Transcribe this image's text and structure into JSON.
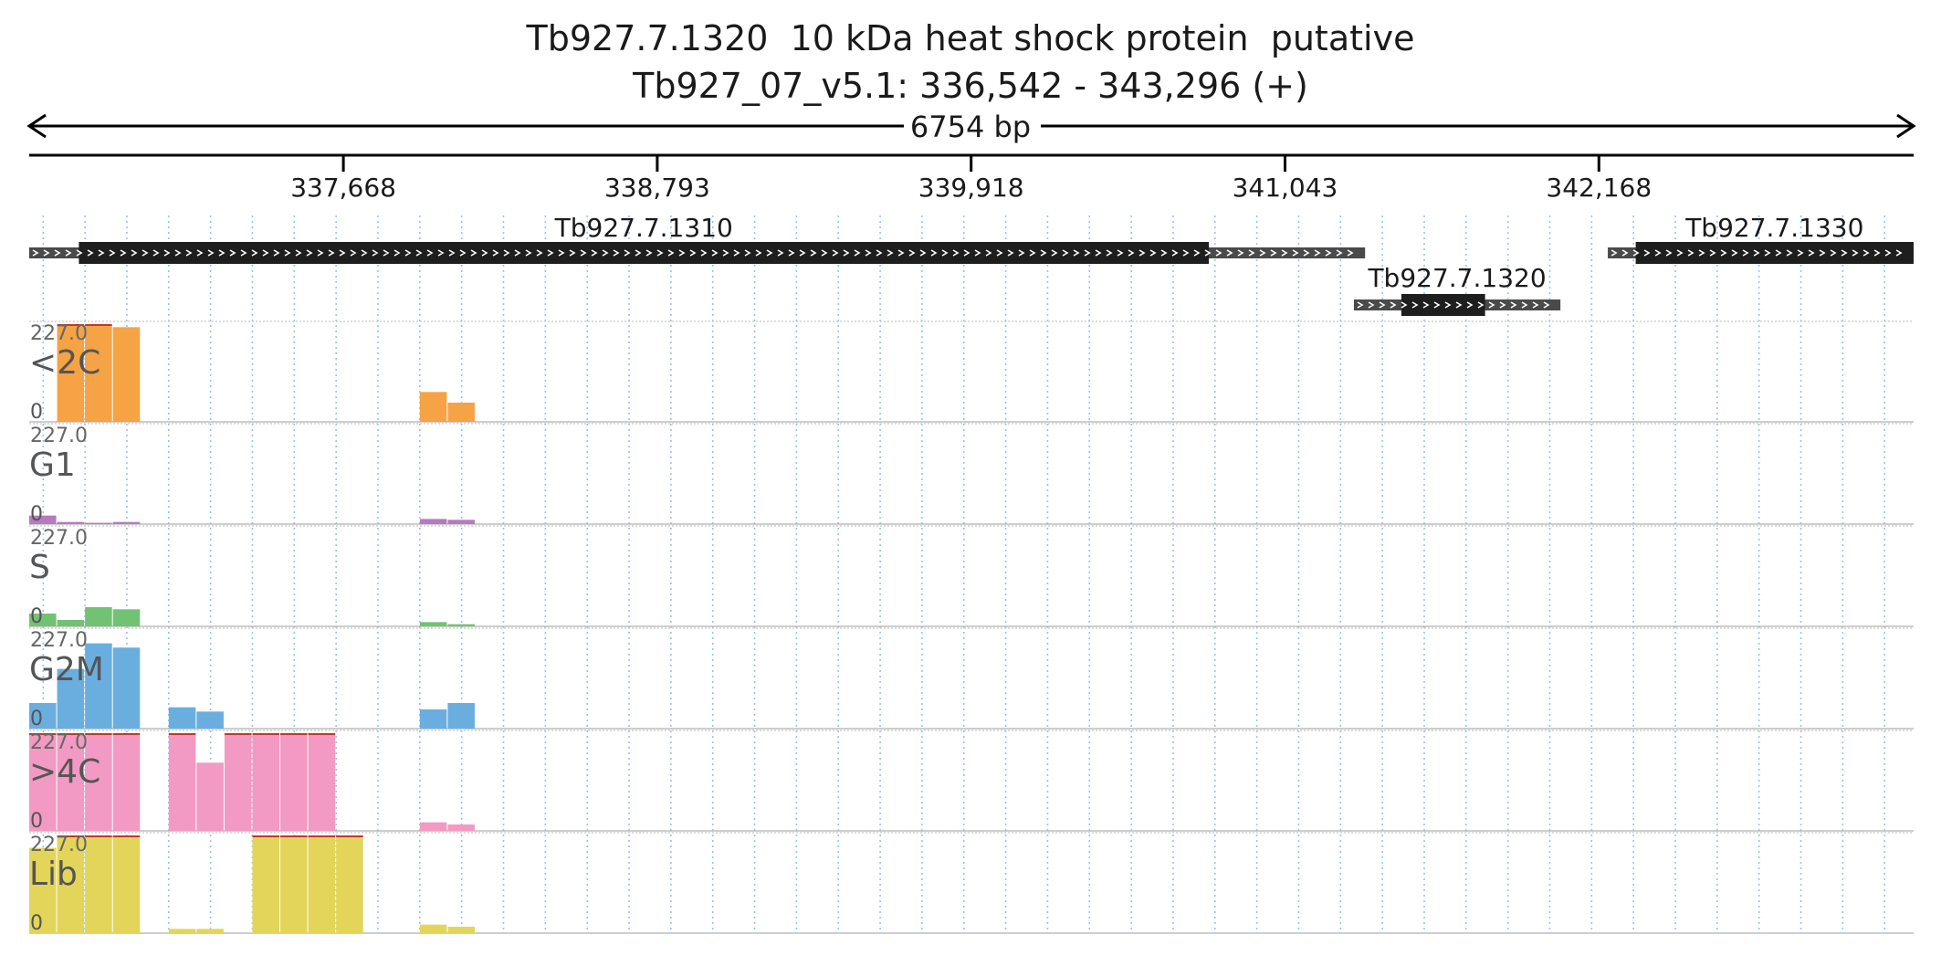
{
  "chart_data": {
    "type": "area",
    "title": "Tb927.7.1320  10 kDa heat shock protein  putative",
    "subtitle": "Tb927_07_v5.1: 336,542 - 343,296 (+)",
    "span_label": "6754 bp",
    "x_range": [
      336542,
      343296
    ],
    "x_ticks": [
      {
        "value": 337668,
        "label": "337,668"
      },
      {
        "value": 338793,
        "label": "338,793"
      },
      {
        "value": 339918,
        "label": "339,918"
      },
      {
        "value": 341043,
        "label": "341,043"
      },
      {
        "value": 342168,
        "label": "342,168"
      }
    ],
    "grid": true,
    "genes": [
      {
        "name": "Tb927.7.1310",
        "utr_start": 336542,
        "cds_start": 336720,
        "cds_end": 340770,
        "utr_end": 341330,
        "row": 0
      },
      {
        "name": "Tb927.7.1320",
        "utr_start": 341290,
        "cds_start": 341460,
        "cds_end": 341760,
        "utr_end": 342030,
        "row": 1
      },
      {
        "name": "Tb927.7.1330",
        "utr_start": 342200,
        "cds_start": 342300,
        "cds_end": 343296,
        "utr_end": 343296,
        "row": 0
      }
    ],
    "ylim": [
      0,
      227.0
    ],
    "ymax_label": "227.0",
    "ymin_label": "0",
    "bin_x": [
      336542,
      336642,
      336742,
      336842,
      336942,
      337042,
      337142,
      337242,
      337342,
      337442,
      337542,
      337642,
      337742,
      337842,
      337942,
      338042,
      338142,
      338242,
      338342,
      338442,
      338542,
      338642,
      338742,
      338842,
      338942,
      339042,
      339142,
      339242,
      339342,
      339442,
      339542,
      339642,
      339742,
      339842,
      339942,
      340042,
      340142,
      340242,
      340342,
      340442,
      340542,
      340642,
      340742,
      340842,
      340942,
      341042,
      341142,
      341242,
      341342,
      341442,
      341542,
      341642,
      341742,
      341842,
      341942,
      342042,
      342142,
      342242,
      342342,
      342442,
      342542,
      342642,
      342742,
      342842,
      342942,
      343042,
      343142,
      343242
    ],
    "series": [
      {
        "name": "<2C",
        "color": "#f5a345",
        "values": [
          0,
          227,
          227,
          222,
          0,
          0,
          0,
          0,
          0,
          0,
          0,
          0,
          0,
          0,
          70,
          45,
          0,
          0,
          0,
          0,
          0,
          0,
          0,
          0,
          0,
          0,
          0,
          0,
          0,
          0,
          0,
          0,
          0,
          0,
          0,
          0,
          0,
          0,
          0,
          0,
          0,
          0,
          0,
          0,
          0,
          0,
          0,
          0,
          0,
          0,
          0,
          0,
          0,
          0,
          0,
          0,
          0,
          0,
          0,
          0,
          0,
          0,
          0,
          0,
          0,
          0,
          0,
          0
        ]
      },
      {
        "name": "G1",
        "color": "#b57bbf",
        "values": [
          20,
          5,
          3,
          5,
          0,
          0,
          0,
          0,
          0,
          0,
          0,
          0,
          0,
          0,
          12,
          10,
          0,
          0,
          0,
          0,
          0,
          0,
          0,
          0,
          0,
          0,
          0,
          0,
          0,
          0,
          0,
          0,
          0,
          0,
          0,
          0,
          0,
          0,
          0,
          0,
          0,
          0,
          0,
          0,
          0,
          0,
          0,
          0,
          0,
          0,
          0,
          0,
          0,
          0,
          0,
          0,
          0,
          0,
          0,
          0,
          0,
          0,
          0,
          0,
          0,
          0,
          0,
          0
        ]
      },
      {
        "name": "S",
        "color": "#72c274",
        "values": [
          30,
          15,
          45,
          40,
          0,
          0,
          0,
          0,
          0,
          0,
          0,
          0,
          0,
          0,
          10,
          5,
          0,
          0,
          0,
          0,
          0,
          0,
          0,
          0,
          0,
          0,
          0,
          0,
          0,
          0,
          0,
          0,
          0,
          0,
          0,
          0,
          0,
          0,
          0,
          0,
          0,
          0,
          0,
          0,
          0,
          0,
          0,
          0,
          0,
          0,
          0,
          0,
          0,
          0,
          0,
          0,
          0,
          0,
          0,
          0,
          0,
          0,
          0,
          0,
          0,
          0,
          0,
          0
        ]
      },
      {
        "name": "G2M",
        "color": "#6aaee0",
        "values": [
          60,
          140,
          200,
          190,
          0,
          50,
          40,
          0,
          0,
          0,
          0,
          0,
          0,
          0,
          45,
          60,
          0,
          0,
          0,
          0,
          0,
          0,
          0,
          0,
          0,
          0,
          0,
          0,
          0,
          0,
          0,
          0,
          0,
          0,
          0,
          0,
          0,
          0,
          0,
          0,
          0,
          0,
          0,
          0,
          0,
          0,
          0,
          0,
          0,
          0,
          0,
          0,
          0,
          0,
          0,
          0,
          0,
          0,
          0,
          0,
          0,
          0,
          0,
          0,
          0,
          0,
          0,
          0
        ]
      },
      {
        "name": ">4C",
        "color": "#f29ac3",
        "values": [
          227,
          227,
          227,
          227,
          0,
          227,
          160,
          227,
          227,
          227,
          227,
          0,
          0,
          0,
          20,
          15,
          0,
          0,
          0,
          0,
          0,
          0,
          0,
          0,
          0,
          0,
          0,
          0,
          0,
          0,
          0,
          0,
          0,
          0,
          0,
          0,
          0,
          0,
          0,
          0,
          0,
          0,
          0,
          0,
          0,
          0,
          0,
          0,
          0,
          0,
          0,
          0,
          0,
          0,
          0,
          0,
          0,
          0,
          0,
          0,
          0,
          0,
          0,
          0,
          0,
          0,
          0,
          0
        ]
      },
      {
        "name": "Lib",
        "color": "#e3d55a",
        "values": [
          200,
          227,
          227,
          227,
          0,
          10,
          10,
          0,
          227,
          227,
          227,
          227,
          0,
          0,
          20,
          15,
          0,
          0,
          0,
          0,
          0,
          0,
          0,
          0,
          0,
          0,
          0,
          0,
          0,
          0,
          0,
          0,
          0,
          0,
          0,
          0,
          0,
          0,
          0,
          0,
          0,
          0,
          0,
          0,
          0,
          0,
          0,
          0,
          0,
          0,
          0,
          0,
          0,
          0,
          0,
          0,
          0,
          0,
          0,
          0,
          0,
          0,
          0,
          0,
          0,
          0,
          0,
          0
        ]
      }
    ]
  }
}
